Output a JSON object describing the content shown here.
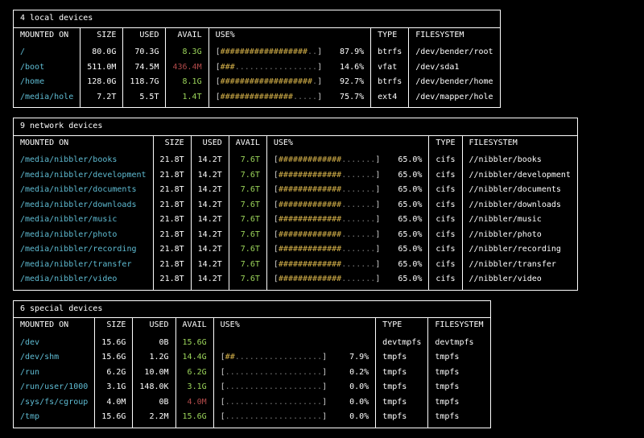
{
  "colors": {
    "bg": "#000000",
    "fg": "#ffffff",
    "mount": "#5fbcd3",
    "avail": "#9bd45a",
    "neg": "#b24a4a",
    "bar_fill": "#d6b24a",
    "bar_pad": "#777777"
  },
  "bar": {
    "width": 20,
    "fill_char": "#",
    "pad_char": "."
  },
  "columns": [
    "MOUNTED ON",
    "SIZE",
    "USED",
    "AVAIL",
    "USE%",
    "TYPE",
    "FILESYSTEM"
  ],
  "sections": [
    {
      "title": "4 local devices",
      "rows": [
        {
          "mount": "/",
          "size": "80.0G",
          "used": "70.3G",
          "avail": "8.3G",
          "avail_neg": false,
          "pct": 87.9,
          "type": "btrfs",
          "fs": "/dev/bender/root"
        },
        {
          "mount": "/boot",
          "size": "511.0M",
          "used": "74.5M",
          "avail": "436.4M",
          "avail_neg": true,
          "pct": 14.6,
          "type": "vfat",
          "fs": "/dev/sda1"
        },
        {
          "mount": "/home",
          "size": "128.0G",
          "used": "118.7G",
          "avail": "8.1G",
          "avail_neg": false,
          "pct": 92.7,
          "type": "btrfs",
          "fs": "/dev/bender/home"
        },
        {
          "mount": "/media/hole",
          "size": "7.2T",
          "used": "5.5T",
          "avail": "1.4T",
          "avail_neg": false,
          "pct": 75.7,
          "type": "ext4",
          "fs": "/dev/mapper/hole"
        }
      ]
    },
    {
      "title": "9 network devices",
      "rows": [
        {
          "mount": "/media/nibbler/books",
          "size": "21.8T",
          "used": "14.2T",
          "avail": "7.6T",
          "avail_neg": false,
          "pct": 65.0,
          "type": "cifs",
          "fs": "//nibbler/books"
        },
        {
          "mount": "/media/nibbler/development",
          "size": "21.8T",
          "used": "14.2T",
          "avail": "7.6T",
          "avail_neg": false,
          "pct": 65.0,
          "type": "cifs",
          "fs": "//nibbler/development"
        },
        {
          "mount": "/media/nibbler/documents",
          "size": "21.8T",
          "used": "14.2T",
          "avail": "7.6T",
          "avail_neg": false,
          "pct": 65.0,
          "type": "cifs",
          "fs": "//nibbler/documents"
        },
        {
          "mount": "/media/nibbler/downloads",
          "size": "21.8T",
          "used": "14.2T",
          "avail": "7.6T",
          "avail_neg": false,
          "pct": 65.0,
          "type": "cifs",
          "fs": "//nibbler/downloads"
        },
        {
          "mount": "/media/nibbler/music",
          "size": "21.8T",
          "used": "14.2T",
          "avail": "7.6T",
          "avail_neg": false,
          "pct": 65.0,
          "type": "cifs",
          "fs": "//nibbler/music"
        },
        {
          "mount": "/media/nibbler/photo",
          "size": "21.8T",
          "used": "14.2T",
          "avail": "7.6T",
          "avail_neg": false,
          "pct": 65.0,
          "type": "cifs",
          "fs": "//nibbler/photo"
        },
        {
          "mount": "/media/nibbler/recording",
          "size": "21.8T",
          "used": "14.2T",
          "avail": "7.6T",
          "avail_neg": false,
          "pct": 65.0,
          "type": "cifs",
          "fs": "//nibbler/recording"
        },
        {
          "mount": "/media/nibbler/transfer",
          "size": "21.8T",
          "used": "14.2T",
          "avail": "7.6T",
          "avail_neg": false,
          "pct": 65.0,
          "type": "cifs",
          "fs": "//nibbler/transfer"
        },
        {
          "mount": "/media/nibbler/video",
          "size": "21.8T",
          "used": "14.2T",
          "avail": "7.6T",
          "avail_neg": false,
          "pct": 65.0,
          "type": "cifs",
          "fs": "//nibbler/video"
        }
      ]
    },
    {
      "title": "6 special devices",
      "rows": [
        {
          "mount": "/dev",
          "size": "15.6G",
          "used": "0B",
          "avail": "15.6G",
          "avail_neg": false,
          "pct": null,
          "type": "devtmpfs",
          "fs": "devtmpfs"
        },
        {
          "mount": "/dev/shm",
          "size": "15.6G",
          "used": "1.2G",
          "avail": "14.4G",
          "avail_neg": false,
          "pct": 7.9,
          "type": "tmpfs",
          "fs": "tmpfs"
        },
        {
          "mount": "/run",
          "size": "6.2G",
          "used": "10.0M",
          "avail": "6.2G",
          "avail_neg": false,
          "pct": 0.2,
          "type": "tmpfs",
          "fs": "tmpfs"
        },
        {
          "mount": "/run/user/1000",
          "size": "3.1G",
          "used": "148.0K",
          "avail": "3.1G",
          "avail_neg": false,
          "pct": 0.0,
          "type": "tmpfs",
          "fs": "tmpfs"
        },
        {
          "mount": "/sys/fs/cgroup",
          "size": "4.0M",
          "used": "0B",
          "avail": "4.0M",
          "avail_neg": true,
          "pct": 0.0,
          "type": "tmpfs",
          "fs": "tmpfs"
        },
        {
          "mount": "/tmp",
          "size": "15.6G",
          "used": "2.2M",
          "avail": "15.6G",
          "avail_neg": false,
          "pct": 0.0,
          "type": "tmpfs",
          "fs": "tmpfs"
        }
      ]
    }
  ]
}
